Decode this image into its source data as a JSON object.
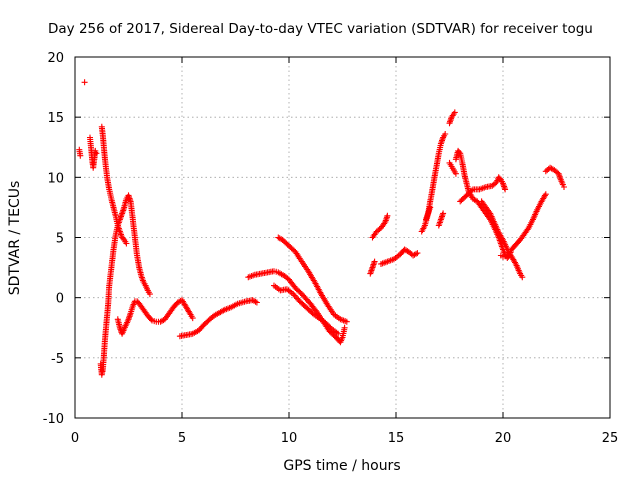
{
  "chart_data": {
    "type": "scatter",
    "title": "Day 256 of 2017, Sidereal Day-to-day VTEC variation (SDTVAR) for receiver togu",
    "xlabel": "GPS time / hours",
    "ylabel": "SDTVAR / TECUs",
    "xlim": [
      0,
      25
    ],
    "ylim": [
      -10,
      20
    ],
    "x_ticks": [
      0,
      5,
      10,
      15,
      20,
      25
    ],
    "y_ticks": [
      -10,
      -5,
      0,
      5,
      10,
      15,
      20
    ],
    "grid": true,
    "marker": "+",
    "color": "#ff0000",
    "legend": null,
    "trace_segments": [
      [
        [
          0.2,
          12.3
        ],
        [
          0.25,
          11.8
        ]
      ],
      [
        [
          0.45,
          17.9
        ]
      ],
      [
        [
          0.7,
          13.3
        ],
        [
          0.75,
          12.5
        ],
        [
          0.8,
          11.5
        ],
        [
          0.85,
          10.8
        ],
        [
          0.9,
          11.5
        ],
        [
          0.95,
          12.2
        ],
        [
          1.0,
          12.0
        ]
      ],
      [
        [
          1.2,
          -5.5
        ],
        [
          1.25,
          -6.4
        ],
        [
          1.3,
          -6.0
        ],
        [
          1.35,
          -4.8
        ],
        [
          1.4,
          -3.5
        ],
        [
          1.45,
          -2.5
        ],
        [
          1.5,
          -1.5
        ],
        [
          1.55,
          -0.5
        ],
        [
          1.6,
          1.0
        ],
        [
          1.7,
          2.5
        ],
        [
          1.8,
          4.0
        ],
        [
          1.9,
          5.2
        ],
        [
          2.0,
          6.0
        ],
        [
          2.1,
          6.5
        ],
        [
          2.2,
          7.0
        ],
        [
          2.3,
          7.5
        ],
        [
          2.4,
          8.2
        ],
        [
          2.5,
          8.5
        ],
        [
          2.6,
          8.0
        ],
        [
          2.7,
          6.5
        ],
        [
          2.8,
          5.0
        ],
        [
          2.9,
          3.5
        ],
        [
          3.0,
          2.5
        ],
        [
          3.1,
          1.8
        ],
        [
          3.2,
          1.3
        ],
        [
          3.3,
          1.0
        ],
        [
          3.4,
          0.6
        ],
        [
          3.5,
          0.3
        ]
      ],
      [
        [
          1.25,
          14.2
        ],
        [
          1.3,
          13.5
        ],
        [
          1.35,
          12.5
        ],
        [
          1.4,
          11.5
        ],
        [
          1.5,
          10.0
        ],
        [
          1.6,
          9.0
        ],
        [
          1.7,
          8.2
        ],
        [
          1.8,
          7.5
        ],
        [
          1.9,
          6.8
        ],
        [
          2.0,
          6.0
        ],
        [
          2.1,
          5.5
        ],
        [
          2.2,
          5.0
        ],
        [
          2.3,
          4.8
        ],
        [
          2.4,
          4.5
        ]
      ],
      [
        [
          2.0,
          -1.8
        ],
        [
          2.1,
          -2.5
        ],
        [
          2.2,
          -3.0
        ],
        [
          2.3,
          -2.6
        ],
        [
          2.4,
          -2.2
        ],
        [
          2.5,
          -1.8
        ],
        [
          2.6,
          -1.3
        ],
        [
          2.7,
          -0.7
        ],
        [
          2.8,
          -0.3
        ],
        [
          2.9,
          -0.3
        ],
        [
          3.0,
          -0.5
        ],
        [
          3.2,
          -1.0
        ],
        [
          3.4,
          -1.5
        ],
        [
          3.6,
          -1.9
        ],
        [
          3.8,
          -2.0
        ],
        [
          4.0,
          -2.0
        ],
        [
          4.2,
          -1.8
        ],
        [
          4.4,
          -1.3
        ],
        [
          4.6,
          -0.8
        ],
        [
          4.8,
          -0.4
        ],
        [
          5.0,
          -0.2
        ],
        [
          5.2,
          -0.8
        ],
        [
          5.4,
          -1.4
        ],
        [
          5.5,
          -1.7
        ]
      ],
      [
        [
          4.9,
          -3.2
        ],
        [
          5.2,
          -3.1
        ],
        [
          5.5,
          -3.0
        ],
        [
          5.8,
          -2.7
        ],
        [
          6.0,
          -2.3
        ],
        [
          6.3,
          -1.8
        ],
        [
          6.5,
          -1.5
        ],
        [
          6.8,
          -1.2
        ],
        [
          7.0,
          -1.0
        ],
        [
          7.3,
          -0.8
        ],
        [
          7.6,
          -0.5
        ],
        [
          8.0,
          -0.3
        ],
        [
          8.3,
          -0.2
        ],
        [
          8.5,
          -0.4
        ]
      ],
      [
        [
          8.1,
          1.7
        ],
        [
          8.4,
          1.9
        ],
        [
          8.7,
          2.0
        ],
        [
          9.0,
          2.1
        ],
        [
          9.3,
          2.2
        ],
        [
          9.5,
          2.1
        ],
        [
          9.8,
          1.8
        ],
        [
          10.0,
          1.5
        ],
        [
          10.3,
          0.8
        ],
        [
          10.6,
          0.3
        ],
        [
          11.0,
          -0.5
        ],
        [
          11.3,
          -1.2
        ],
        [
          11.6,
          -2.0
        ],
        [
          11.9,
          -2.8
        ],
        [
          12.2,
          -3.3
        ],
        [
          12.4,
          -3.7
        ],
        [
          12.5,
          -3.3
        ],
        [
          12.6,
          -2.5
        ]
      ],
      [
        [
          9.5,
          5.0
        ],
        [
          9.7,
          4.8
        ],
        [
          10.0,
          4.3
        ],
        [
          10.3,
          3.8
        ],
        [
          10.6,
          3.0
        ],
        [
          10.9,
          2.2
        ],
        [
          11.2,
          1.3
        ],
        [
          11.5,
          0.3
        ],
        [
          11.8,
          -0.6
        ],
        [
          12.1,
          -1.4
        ],
        [
          12.4,
          -1.8
        ],
        [
          12.7,
          -2.0
        ]
      ],
      [
        [
          9.3,
          1.0
        ],
        [
          9.6,
          0.6
        ],
        [
          9.9,
          0.7
        ],
        [
          10.2,
          0.3
        ],
        [
          10.5,
          -0.3
        ],
        [
          10.8,
          -0.8
        ],
        [
          11.1,
          -1.3
        ],
        [
          11.4,
          -1.7
        ],
        [
          11.7,
          -2.1
        ],
        [
          12.0,
          -2.6
        ],
        [
          12.3,
          -3.0
        ]
      ],
      [
        [
          13.8,
          2.0
        ],
        [
          13.9,
          2.5
        ],
        [
          14.0,
          3.0
        ]
      ],
      [
        [
          13.9,
          5.0
        ],
        [
          14.1,
          5.5
        ],
        [
          14.3,
          5.8
        ],
        [
          14.5,
          6.3
        ],
        [
          14.6,
          6.8
        ]
      ],
      [
        [
          14.3,
          2.8
        ],
        [
          14.6,
          3.0
        ],
        [
          14.9,
          3.2
        ],
        [
          15.2,
          3.6
        ],
        [
          15.4,
          4.0
        ],
        [
          15.6,
          3.8
        ],
        [
          15.8,
          3.5
        ],
        [
          16.0,
          3.7
        ]
      ],
      [
        [
          16.2,
          5.5
        ],
        [
          16.35,
          6.0
        ],
        [
          16.5,
          7.0
        ],
        [
          16.6,
          8.0
        ],
        [
          16.7,
          9.0
        ],
        [
          16.8,
          10.0
        ],
        [
          16.9,
          11.0
        ],
        [
          17.0,
          12.0
        ],
        [
          17.1,
          12.8
        ],
        [
          17.2,
          13.3
        ],
        [
          17.3,
          13.6
        ]
      ],
      [
        [
          16.4,
          6.5
        ],
        [
          16.6,
          7.5
        ]
      ],
      [
        [
          17.0,
          6.0
        ],
        [
          17.1,
          6.5
        ],
        [
          17.2,
          7.0
        ]
      ],
      [
        [
          17.5,
          14.5
        ],
        [
          17.6,
          15.0
        ],
        [
          17.75,
          15.4
        ]
      ],
      [
        [
          17.5,
          11.2
        ],
        [
          17.6,
          10.9
        ],
        [
          17.7,
          10.6
        ],
        [
          17.8,
          10.3
        ]
      ],
      [
        [
          17.8,
          11.5
        ],
        [
          17.9,
          12.2
        ],
        [
          18.0,
          12.0
        ],
        [
          18.1,
          11.2
        ],
        [
          18.2,
          10.2
        ],
        [
          18.3,
          9.5
        ],
        [
          18.4,
          8.8
        ],
        [
          18.6,
          8.2
        ],
        [
          18.8,
          8.0
        ],
        [
          19.0,
          7.5
        ],
        [
          19.2,
          7.0
        ],
        [
          19.4,
          6.5
        ],
        [
          19.6,
          5.8
        ],
        [
          19.8,
          5.0
        ],
        [
          19.9,
          4.5
        ],
        [
          20.0,
          4.0
        ],
        [
          20.1,
          3.6
        ],
        [
          20.2,
          3.3
        ],
        [
          20.3,
          3.5
        ],
        [
          20.4,
          4.0
        ],
        [
          20.6,
          4.4
        ],
        [
          20.8,
          4.8
        ],
        [
          21.0,
          5.3
        ],
        [
          21.2,
          5.8
        ],
        [
          21.4,
          6.5
        ],
        [
          21.6,
          7.3
        ],
        [
          21.8,
          8.0
        ],
        [
          22.0,
          8.6
        ]
      ],
      [
        [
          18.0,
          8.0
        ],
        [
          18.3,
          8.5
        ],
        [
          18.6,
          9.0
        ],
        [
          18.9,
          9.0
        ],
        [
          19.2,
          9.2
        ],
        [
          19.5,
          9.3
        ],
        [
          19.7,
          9.6
        ],
        [
          19.8,
          10.0
        ],
        [
          19.9,
          9.8
        ],
        [
          20.0,
          9.5
        ],
        [
          20.1,
          9.0
        ]
      ],
      [
        [
          19.0,
          8.0
        ],
        [
          19.2,
          7.5
        ],
        [
          19.4,
          7.0
        ],
        [
          19.6,
          6.2
        ],
        [
          19.8,
          5.4
        ],
        [
          20.0,
          4.8
        ],
        [
          20.2,
          4.0
        ],
        [
          20.4,
          3.4
        ],
        [
          20.6,
          2.8
        ],
        [
          20.8,
          2.0
        ],
        [
          20.9,
          1.7
        ]
      ],
      [
        [
          19.9,
          3.5
        ],
        [
          20.0,
          3.4
        ],
        [
          20.2,
          3.5
        ]
      ],
      [
        [
          22.0,
          10.5
        ],
        [
          22.2,
          10.8
        ],
        [
          22.4,
          10.6
        ],
        [
          22.6,
          10.3
        ],
        [
          22.7,
          9.8
        ],
        [
          22.8,
          9.4
        ],
        [
          22.85,
          9.2
        ]
      ]
    ]
  }
}
